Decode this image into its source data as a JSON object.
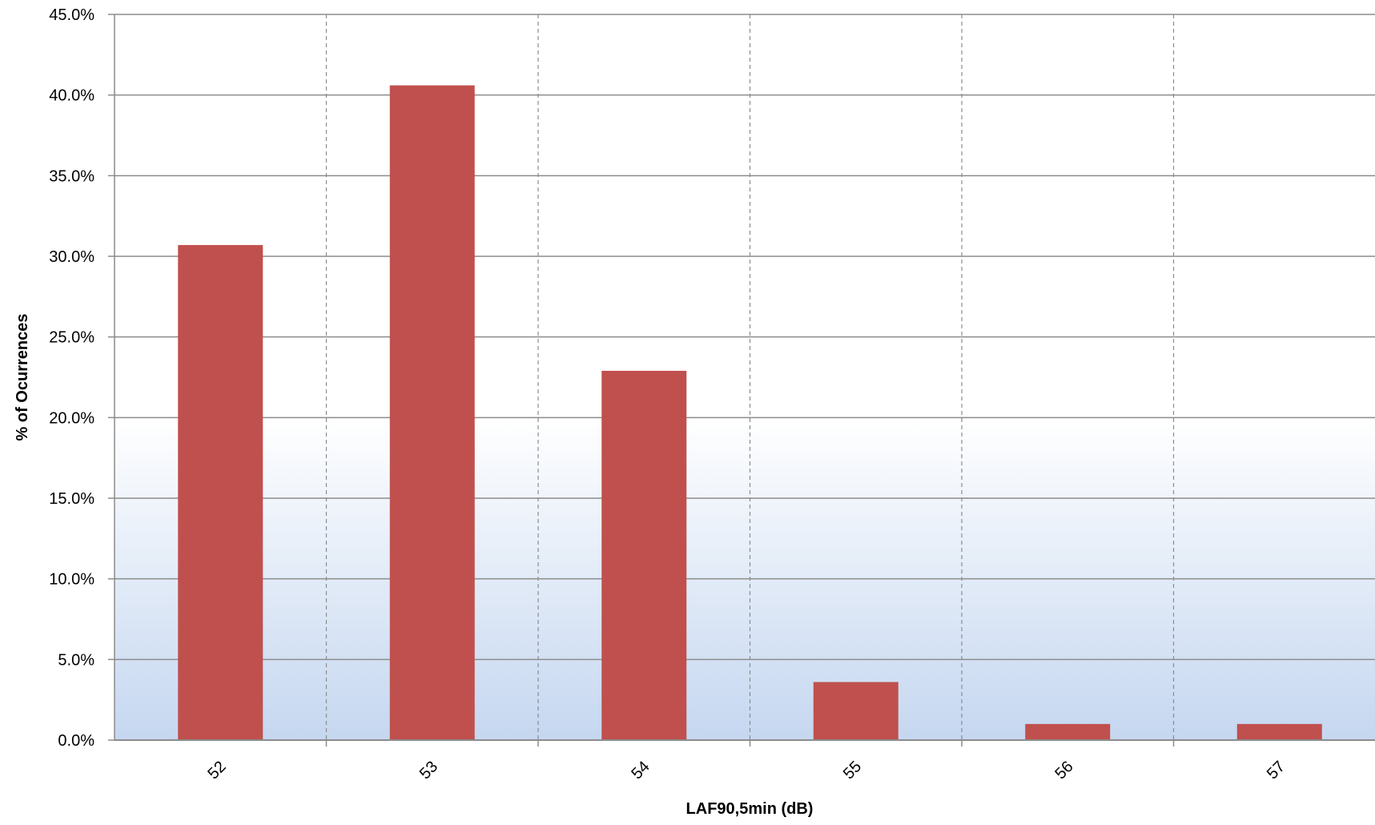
{
  "chart_data": {
    "type": "bar",
    "title": "",
    "xlabel": "LAF90,5min (dB)",
    "ylabel": "% of Ocurrences",
    "categories": [
      "52",
      "53",
      "54",
      "55",
      "56",
      "57"
    ],
    "values": [
      30.7,
      40.6,
      22.9,
      3.6,
      1.0,
      1.0
    ],
    "ylim": [
      0,
      45
    ],
    "y_ticks": [
      0,
      5,
      10,
      15,
      20,
      25,
      30,
      35,
      40,
      45
    ],
    "y_tick_labels": [
      "0.0%",
      "5.0%",
      "10.0%",
      "15.0%",
      "20.0%",
      "25.0%",
      "30.0%",
      "35.0%",
      "40.0%",
      "45.0%"
    ],
    "grid": {
      "horizontal": "solid",
      "vertical": "dashed"
    },
    "colors": {
      "bar": "#c0504d",
      "grid": "#8c8c8c",
      "background_top": "#ffffff",
      "background_bottom": "#c5d7f0"
    }
  }
}
